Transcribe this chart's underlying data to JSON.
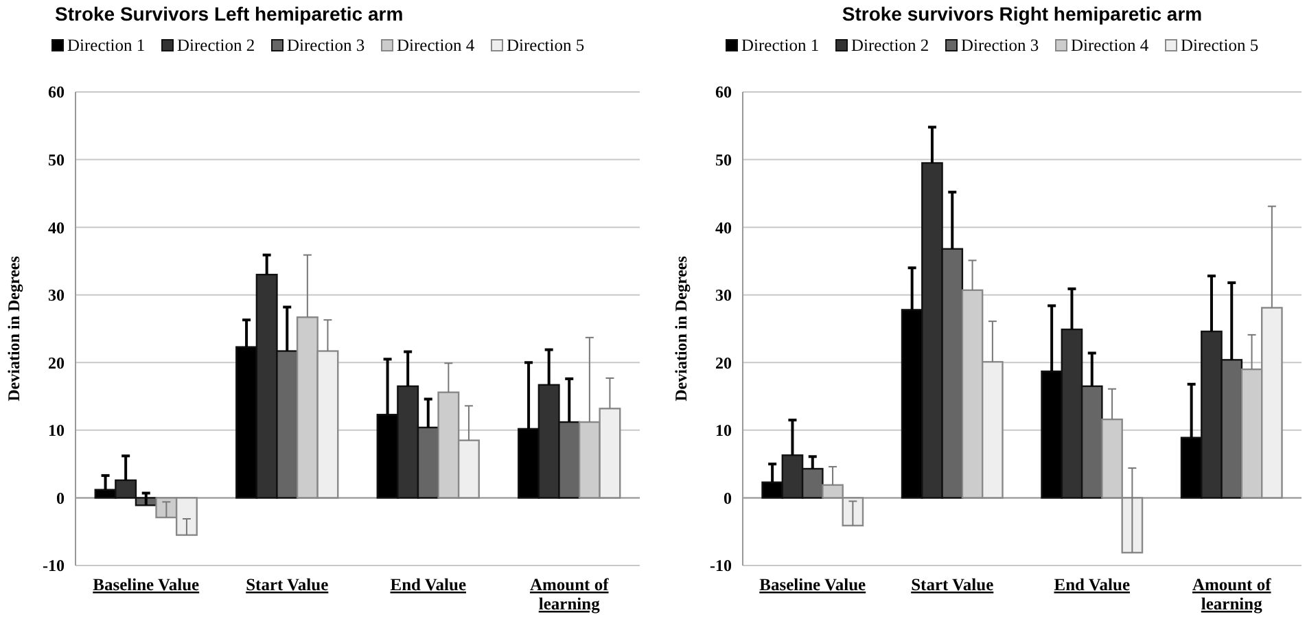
{
  "chart_data": [
    {
      "type": "bar",
      "title": "Stroke Survivors Left hemiparetic arm",
      "ylabel": "Deviation in Degrees",
      "categories": [
        "Baseline Value",
        "Start Value",
        "End Value",
        "Amount of learning"
      ],
      "ylim": [
        -10,
        60
      ],
      "yticks": [
        -10,
        0,
        10,
        20,
        30,
        40,
        50,
        60
      ],
      "grid": "y",
      "legend": "top",
      "series": [
        {
          "name": "Direction 1",
          "color": "#000000",
          "values": [
            1.2,
            22.3,
            12.3,
            10.2
          ],
          "errors": [
            [
              1.2,
              3.3
            ],
            [
              22.3,
              26.3
            ],
            [
              12.3,
              20.5
            ],
            [
              10.2,
              20
            ]
          ]
        },
        {
          "name": "Direction 2",
          "color": "#333333",
          "values": [
            2.6,
            33,
            16.5,
            16.7
          ],
          "errors": [
            [
              2.6,
              6.2
            ],
            [
              33,
              35.9
            ],
            [
              16.5,
              21.6
            ],
            [
              16.7,
              21.9
            ]
          ]
        },
        {
          "name": "Direction 3",
          "color": "#666666",
          "values": [
            -1.1,
            21.7,
            10.4,
            11.2
          ],
          "errors": [
            [
              -1.1,
              0.7
            ],
            [
              21.7,
              28.2
            ],
            [
              10.4,
              14.6
            ],
            [
              11.2,
              17.6
            ]
          ]
        },
        {
          "name": "Direction 4",
          "color": "#cccccc",
          "values": [
            -2.9,
            26.7,
            15.6,
            11.2
          ],
          "errors": [
            [
              -2.9,
              -0.6
            ],
            [
              26.7,
              35.9
            ],
            [
              15.6,
              19.9
            ],
            [
              11.2,
              23.7
            ]
          ]
        },
        {
          "name": "Direction 5",
          "color": "#eeeeee",
          "values": [
            -5.5,
            21.7,
            8.5,
            13.2
          ],
          "errors": [
            [
              -5.5,
              -3.1
            ],
            [
              21.7,
              26.3
            ],
            [
              8.5,
              13.6
            ],
            [
              13.2,
              17.7
            ]
          ]
        }
      ]
    },
    {
      "type": "bar",
      "title": "Stroke survivors Right hemiparetic arm",
      "ylabel": "Deviation in Degrees",
      "categories": [
        "Baseline Value",
        "Start Value",
        "End Value",
        "Amount of learning"
      ],
      "ylim": [
        -10,
        60
      ],
      "yticks": [
        -10,
        0,
        10,
        20,
        30,
        40,
        50,
        60
      ],
      "grid": "y",
      "legend": "top",
      "series": [
        {
          "name": "Direction 1",
          "color": "#000000",
          "values": [
            2.3,
            27.8,
            18.7,
            8.9
          ],
          "errors": [
            [
              2.3,
              5
            ],
            [
              27.8,
              34
            ],
            [
              18.7,
              28.4
            ],
            [
              8.9,
              16.8
            ]
          ]
        },
        {
          "name": "Direction 2",
          "color": "#333333",
          "values": [
            6.3,
            49.5,
            24.9,
            24.6
          ],
          "errors": [
            [
              6.3,
              11.5
            ],
            [
              49.5,
              54.8
            ],
            [
              24.9,
              30.9
            ],
            [
              24.6,
              32.8
            ]
          ]
        },
        {
          "name": "Direction 3",
          "color": "#666666",
          "values": [
            4.3,
            36.8,
            16.5,
            20.4
          ],
          "errors": [
            [
              4.3,
              6.1
            ],
            [
              36.8,
              45.2
            ],
            [
              16.5,
              21.4
            ],
            [
              20.4,
              31.8
            ]
          ]
        },
        {
          "name": "Direction 4",
          "color": "#cccccc",
          "values": [
            1.9,
            30.7,
            11.6,
            19
          ],
          "errors": [
            [
              1.9,
              4.6
            ],
            [
              30.7,
              35.1
            ],
            [
              11.6,
              16.1
            ],
            [
              19,
              24.1
            ]
          ]
        },
        {
          "name": "Direction 5",
          "color": "#eeeeee",
          "values": [
            -4.1,
            20.1,
            -8.1,
            28.1
          ],
          "errors": [
            [
              -4.1,
              -0.5
            ],
            [
              20.1,
              26.1
            ],
            [
              -8.1,
              4.4
            ],
            [
              28.1,
              43.1
            ]
          ]
        }
      ]
    }
  ]
}
